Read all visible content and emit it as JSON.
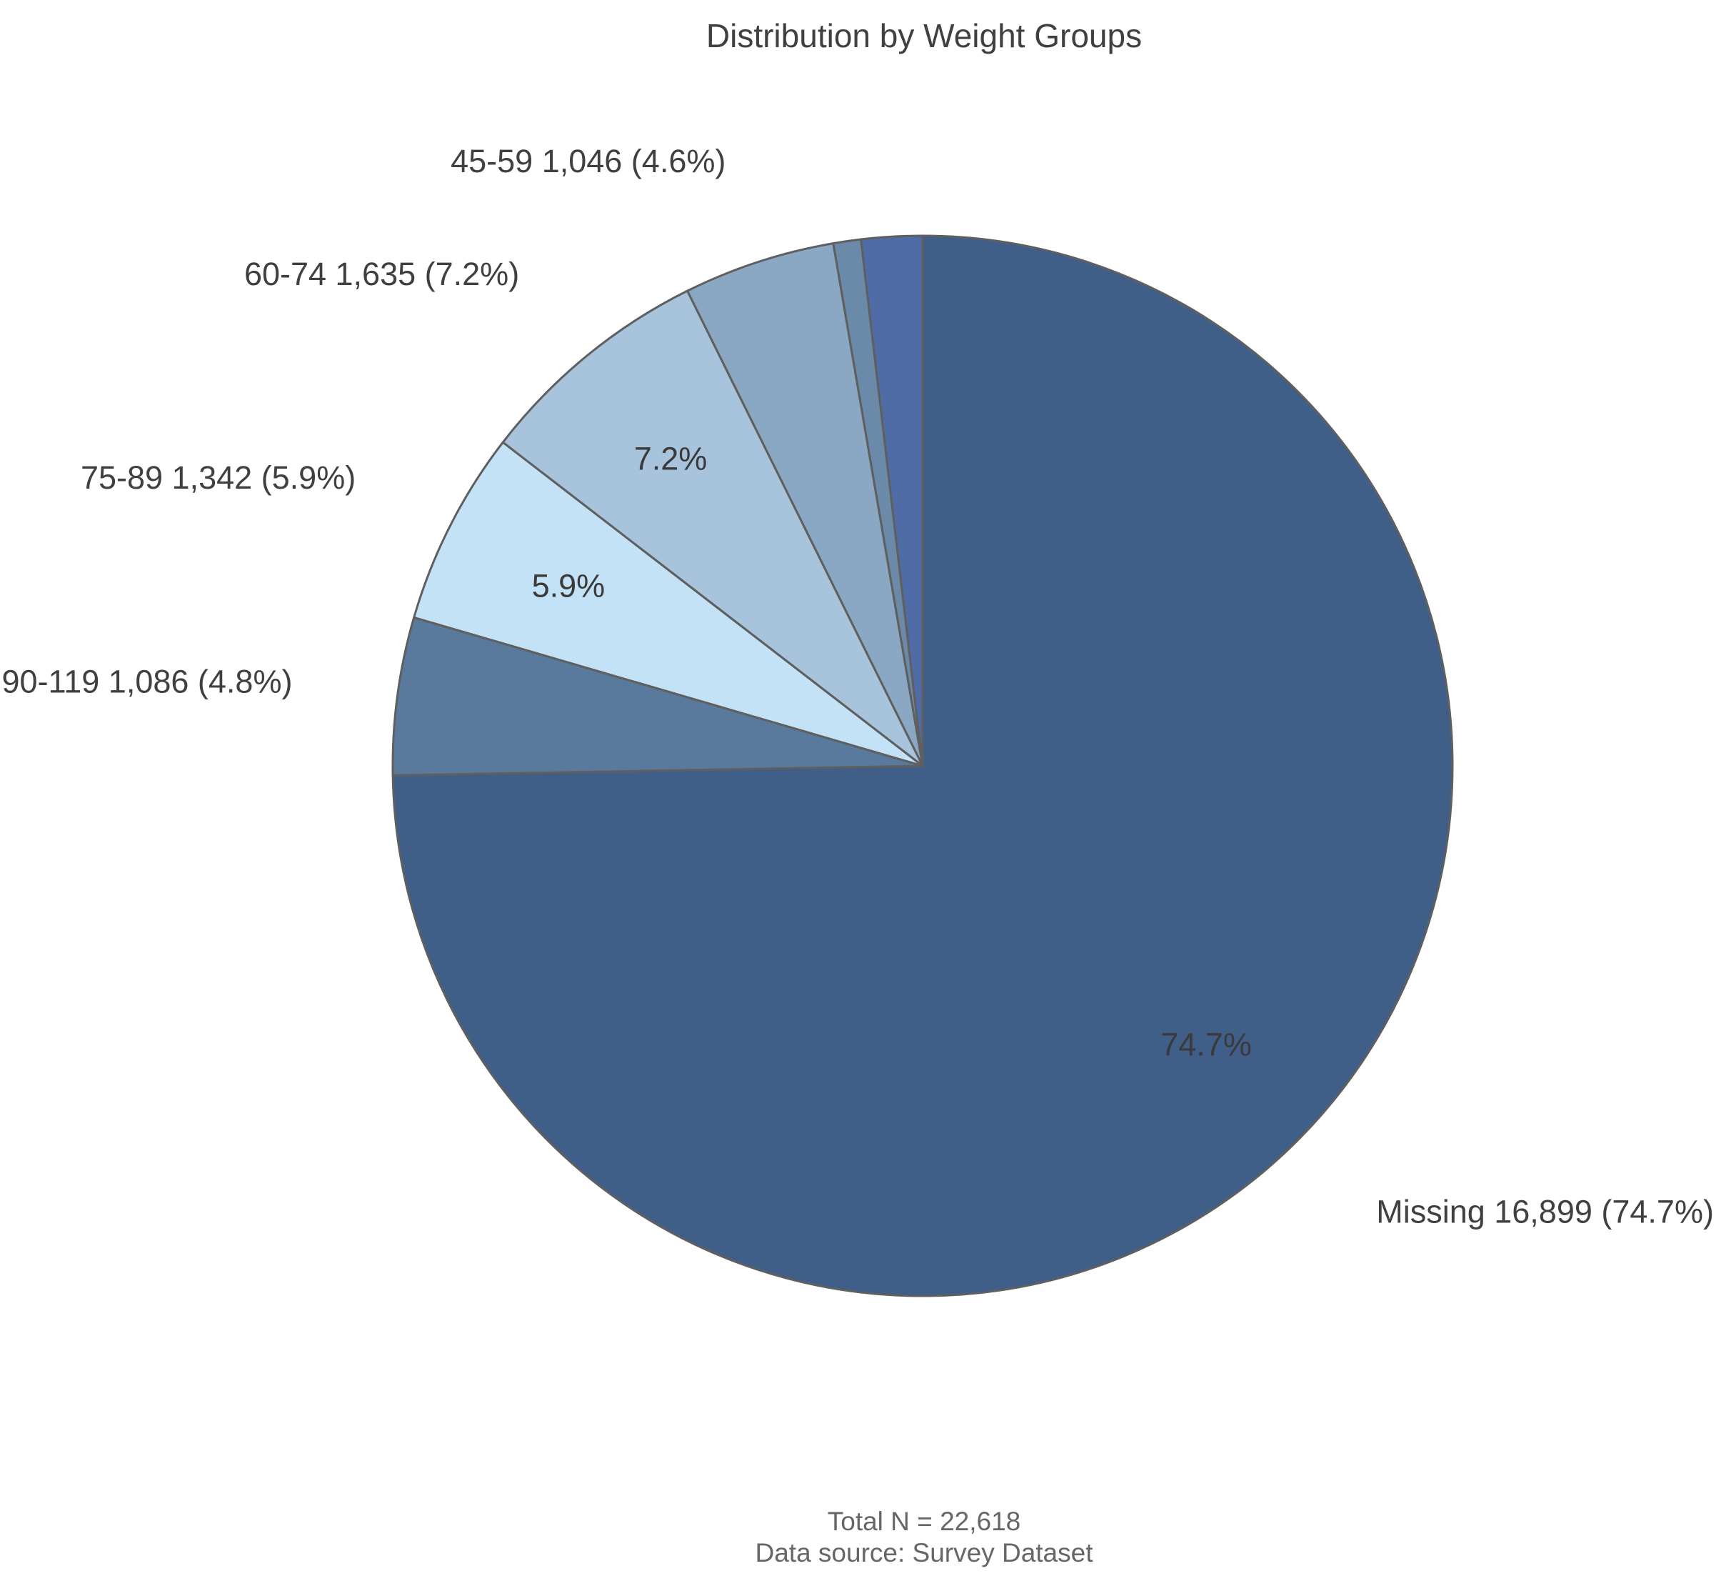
{
  "chart_data": {
    "type": "pie",
    "title": "Distribution by Weight Groups",
    "total_label": "Total N = 22,618",
    "source_label": "Data source: Survey Dataset",
    "start_angle_deg": 90,
    "direction": "clockwise",
    "edge_color": "#5f5f5f",
    "slices": [
      {
        "category": "Missing",
        "value": 16899,
        "percent": 74.7,
        "color": "#3f5f89",
        "outer_label": "Missing 16,899 (74.7%)",
        "inner_label": "74.7%"
      },
      {
        "category": "90-119",
        "value": 1086,
        "percent": 4.8,
        "color": "#5a7a9d",
        "outer_label": "90-119 1,086 (4.8%)",
        "inner_label": ""
      },
      {
        "category": "75-89",
        "value": 1342,
        "percent": 5.9,
        "color": "#c4e2f5",
        "outer_label": "75-89 1,342 (5.9%)",
        "inner_label": "5.9%"
      },
      {
        "category": "60-74",
        "value": 1635,
        "percent": 7.2,
        "color": "#a7c4dc",
        "outer_label": "60-74 1,635 (7.2%)",
        "inner_label": "7.2%"
      },
      {
        "category": "45-59",
        "value": 1046,
        "percent": 4.6,
        "color": "#8aa8c3",
        "outer_label": "45-59 1,046 (4.6%)",
        "inner_label": ""
      },
      {
        "category": "",
        "value": 190,
        "percent": 0.8,
        "color": "#6b89a8",
        "outer_label": "",
        "inner_label": ""
      },
      {
        "category": "",
        "value": 420,
        "percent": 1.9,
        "color": "#4f6ca6",
        "outer_label": "",
        "inner_label": ""
      }
    ]
  }
}
